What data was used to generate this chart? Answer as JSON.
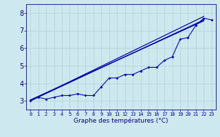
{
  "xlabel": "Graphe des températures (°C)",
  "xlim": [
    -0.5,
    23.5
  ],
  "ylim": [
    2.5,
    8.5
  ],
  "yticks": [
    3,
    4,
    5,
    6,
    7,
    8
  ],
  "xticks": [
    0,
    1,
    2,
    3,
    4,
    5,
    6,
    7,
    8,
    9,
    10,
    11,
    12,
    13,
    14,
    15,
    16,
    17,
    18,
    19,
    20,
    21,
    22,
    23
  ],
  "background_color": "#cde8ee",
  "grid_color": "#b0d0d8",
  "line_color": "#0000aa",
  "line1_x": [
    0,
    1,
    2,
    3,
    4,
    5,
    6,
    7,
    8,
    9,
    10,
    11,
    12,
    13,
    14,
    15,
    16,
    17,
    18,
    19,
    20,
    21,
    22,
    23
  ],
  "line1_y": [
    3.0,
    3.2,
    3.1,
    3.2,
    3.3,
    3.3,
    3.4,
    3.3,
    3.3,
    3.8,
    4.3,
    4.3,
    4.5,
    4.5,
    4.7,
    4.9,
    4.9,
    5.3,
    5.5,
    6.5,
    6.6,
    7.3,
    7.7,
    7.6
  ],
  "line2_x": [
    0,
    22
  ],
  "line2_y": [
    3.0,
    7.8
  ],
  "line3_x": [
    0,
    22
  ],
  "line3_y": [
    3.0,
    7.6
  ],
  "line4_x": [
    0,
    22
  ],
  "line4_y": [
    3.05,
    7.55
  ]
}
